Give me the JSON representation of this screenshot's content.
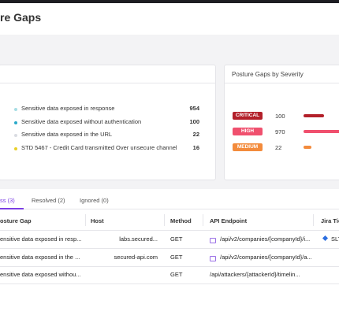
{
  "header": {
    "title": "re Gaps"
  },
  "summary": {
    "items": [
      {
        "label": "Sensitive data exposed in response",
        "count": 954,
        "color": "#a7dde4"
      },
      {
        "label": "Sensitive data exposed without authentication",
        "count": 100,
        "color": "#2aa9c9"
      },
      {
        "label": "Sensitive data exposed in the URL",
        "count": 22,
        "color": "#d9dce2"
      },
      {
        "label": "STD 5467 - Credit Card transmitted Over unsecure channel",
        "count": 16,
        "color": "#e8d02a"
      }
    ]
  },
  "severity": {
    "title": "Posture Gaps by Severity",
    "rows": [
      {
        "level": "CRITICAL",
        "count": 100,
        "color": "#b3202a"
      },
      {
        "level": "HIGH",
        "count": 970,
        "color": "#f0506e"
      },
      {
        "level": "MEDIUM",
        "count": 22,
        "color": "#f38b3c"
      }
    ]
  },
  "tabs": [
    "ss (3)",
    "Resolved (2)",
    "Ignored (0)"
  ],
  "table": {
    "columns": [
      "osture Gap",
      "Host",
      "Method",
      "API Endpoint",
      "Jira Tic"
    ],
    "rows": [
      {
        "gap": "ensitive data exposed in resp...",
        "host": "labs.secured...",
        "method": "GET",
        "endpoint": "/api/v2/companies/{companyId}/i...",
        "jira": "SLT"
      },
      {
        "gap": "ensitive data exposed in the ...",
        "host": "secured-api.com",
        "method": "GET",
        "endpoint": "/api/v2/companies/{companyId}/a..."
      },
      {
        "gap": "ensitive data exposed withou...",
        "method": "GET",
        "endpoint": "/api/attackers/{attackerId}/timelin..."
      }
    ]
  }
}
